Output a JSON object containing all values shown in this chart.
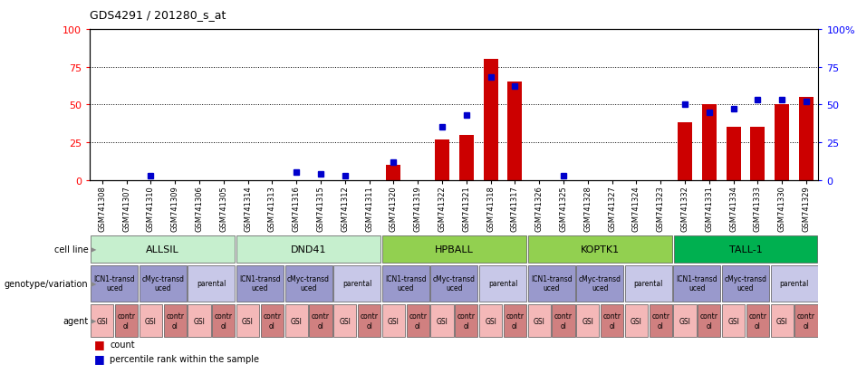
{
  "title": "GDS4291 / 201280_s_at",
  "samples": [
    "GSM741308",
    "GSM741307",
    "GSM741310",
    "GSM741309",
    "GSM741306",
    "GSM741305",
    "GSM741314",
    "GSM741313",
    "GSM741316",
    "GSM741315",
    "GSM741312",
    "GSM741311",
    "GSM741320",
    "GSM741319",
    "GSM741322",
    "GSM741321",
    "GSM741318",
    "GSM741317",
    "GSM741326",
    "GSM741325",
    "GSM741328",
    "GSM741327",
    "GSM741324",
    "GSM741323",
    "GSM741332",
    "GSM741331",
    "GSM741334",
    "GSM741333",
    "GSM741330",
    "GSM741329"
  ],
  "counts": [
    0,
    0,
    0,
    0,
    0,
    0,
    0,
    0,
    0,
    0,
    0,
    0,
    10,
    0,
    27,
    30,
    80,
    65,
    0,
    0,
    0,
    0,
    0,
    0,
    38,
    50,
    35,
    35,
    50,
    55
  ],
  "percentiles": [
    0,
    0,
    3,
    0,
    0,
    0,
    0,
    0,
    5,
    4,
    3,
    0,
    12,
    0,
    35,
    43,
    68,
    62,
    0,
    3,
    0,
    0,
    0,
    0,
    50,
    45,
    47,
    53,
    53,
    52
  ],
  "cell_lines": [
    {
      "name": "ALLSIL",
      "start": 0,
      "end": 6,
      "color": "#c6efce"
    },
    {
      "name": "DND41",
      "start": 6,
      "end": 12,
      "color": "#c6efce"
    },
    {
      "name": "HPBALL",
      "start": 12,
      "end": 18,
      "color": "#92d050"
    },
    {
      "name": "KOPTK1",
      "start": 18,
      "end": 24,
      "color": "#92d050"
    },
    {
      "name": "TALL-1",
      "start": 24,
      "end": 30,
      "color": "#00b050"
    }
  ],
  "geno_groups": [
    {
      "name": "ICN1-transd\nuced",
      "start": 0,
      "end": 2,
      "color": "#9999cc"
    },
    {
      "name": "cMyc-transd\nuced",
      "start": 2,
      "end": 4,
      "color": "#9999cc"
    },
    {
      "name": "parental",
      "start": 4,
      "end": 6,
      "color": "#c8c8e8"
    },
    {
      "name": "ICN1-transd\nuced",
      "start": 6,
      "end": 8,
      "color": "#9999cc"
    },
    {
      "name": "cMyc-transd\nuced",
      "start": 8,
      "end": 10,
      "color": "#9999cc"
    },
    {
      "name": "parental",
      "start": 10,
      "end": 12,
      "color": "#c8c8e8"
    },
    {
      "name": "ICN1-transd\nuced",
      "start": 12,
      "end": 14,
      "color": "#9999cc"
    },
    {
      "name": "cMyc-transd\nuced",
      "start": 14,
      "end": 16,
      "color": "#9999cc"
    },
    {
      "name": "parental",
      "start": 16,
      "end": 18,
      "color": "#c8c8e8"
    },
    {
      "name": "ICN1-transd\nuced",
      "start": 18,
      "end": 20,
      "color": "#9999cc"
    },
    {
      "name": "cMyc-transd\nuced",
      "start": 20,
      "end": 22,
      "color": "#9999cc"
    },
    {
      "name": "parental",
      "start": 22,
      "end": 24,
      "color": "#c8c8e8"
    },
    {
      "name": "ICN1-transd\nuced",
      "start": 24,
      "end": 26,
      "color": "#9999cc"
    },
    {
      "name": "cMyc-transd\nuced",
      "start": 26,
      "end": 28,
      "color": "#9999cc"
    },
    {
      "name": "parental",
      "start": 28,
      "end": 30,
      "color": "#c8c8e8"
    }
  ],
  "bar_color": "#cc0000",
  "dot_color": "#0000cc",
  "yticks": [
    0,
    25,
    50,
    75,
    100
  ],
  "bar_width": 0.6
}
